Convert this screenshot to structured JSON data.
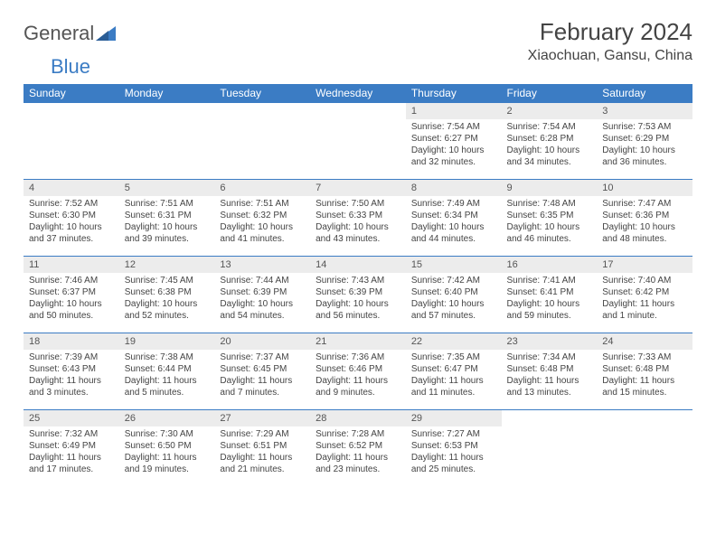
{
  "brand": {
    "part1": "General",
    "part2": "Blue"
  },
  "title": "February 2024",
  "location": "Xiaochuan, Gansu, China",
  "colors": {
    "accent": "#3b7cc4",
    "daynum_bg": "#ececec",
    "text": "#444444",
    "bg": "#ffffff"
  },
  "weekdays": [
    "Sunday",
    "Monday",
    "Tuesday",
    "Wednesday",
    "Thursday",
    "Friday",
    "Saturday"
  ],
  "weeks": [
    [
      null,
      null,
      null,
      null,
      {
        "n": "1",
        "sr": "Sunrise: 7:54 AM",
        "ss": "Sunset: 6:27 PM",
        "dl": "Daylight: 10 hours and 32 minutes."
      },
      {
        "n": "2",
        "sr": "Sunrise: 7:54 AM",
        "ss": "Sunset: 6:28 PM",
        "dl": "Daylight: 10 hours and 34 minutes."
      },
      {
        "n": "3",
        "sr": "Sunrise: 7:53 AM",
        "ss": "Sunset: 6:29 PM",
        "dl": "Daylight: 10 hours and 36 minutes."
      }
    ],
    [
      {
        "n": "4",
        "sr": "Sunrise: 7:52 AM",
        "ss": "Sunset: 6:30 PM",
        "dl": "Daylight: 10 hours and 37 minutes."
      },
      {
        "n": "5",
        "sr": "Sunrise: 7:51 AM",
        "ss": "Sunset: 6:31 PM",
        "dl": "Daylight: 10 hours and 39 minutes."
      },
      {
        "n": "6",
        "sr": "Sunrise: 7:51 AM",
        "ss": "Sunset: 6:32 PM",
        "dl": "Daylight: 10 hours and 41 minutes."
      },
      {
        "n": "7",
        "sr": "Sunrise: 7:50 AM",
        "ss": "Sunset: 6:33 PM",
        "dl": "Daylight: 10 hours and 43 minutes."
      },
      {
        "n": "8",
        "sr": "Sunrise: 7:49 AM",
        "ss": "Sunset: 6:34 PM",
        "dl": "Daylight: 10 hours and 44 minutes."
      },
      {
        "n": "9",
        "sr": "Sunrise: 7:48 AM",
        "ss": "Sunset: 6:35 PM",
        "dl": "Daylight: 10 hours and 46 minutes."
      },
      {
        "n": "10",
        "sr": "Sunrise: 7:47 AM",
        "ss": "Sunset: 6:36 PM",
        "dl": "Daylight: 10 hours and 48 minutes."
      }
    ],
    [
      {
        "n": "11",
        "sr": "Sunrise: 7:46 AM",
        "ss": "Sunset: 6:37 PM",
        "dl": "Daylight: 10 hours and 50 minutes."
      },
      {
        "n": "12",
        "sr": "Sunrise: 7:45 AM",
        "ss": "Sunset: 6:38 PM",
        "dl": "Daylight: 10 hours and 52 minutes."
      },
      {
        "n": "13",
        "sr": "Sunrise: 7:44 AM",
        "ss": "Sunset: 6:39 PM",
        "dl": "Daylight: 10 hours and 54 minutes."
      },
      {
        "n": "14",
        "sr": "Sunrise: 7:43 AM",
        "ss": "Sunset: 6:39 PM",
        "dl": "Daylight: 10 hours and 56 minutes."
      },
      {
        "n": "15",
        "sr": "Sunrise: 7:42 AM",
        "ss": "Sunset: 6:40 PM",
        "dl": "Daylight: 10 hours and 57 minutes."
      },
      {
        "n": "16",
        "sr": "Sunrise: 7:41 AM",
        "ss": "Sunset: 6:41 PM",
        "dl": "Daylight: 10 hours and 59 minutes."
      },
      {
        "n": "17",
        "sr": "Sunrise: 7:40 AM",
        "ss": "Sunset: 6:42 PM",
        "dl": "Daylight: 11 hours and 1 minute."
      }
    ],
    [
      {
        "n": "18",
        "sr": "Sunrise: 7:39 AM",
        "ss": "Sunset: 6:43 PM",
        "dl": "Daylight: 11 hours and 3 minutes."
      },
      {
        "n": "19",
        "sr": "Sunrise: 7:38 AM",
        "ss": "Sunset: 6:44 PM",
        "dl": "Daylight: 11 hours and 5 minutes."
      },
      {
        "n": "20",
        "sr": "Sunrise: 7:37 AM",
        "ss": "Sunset: 6:45 PM",
        "dl": "Daylight: 11 hours and 7 minutes."
      },
      {
        "n": "21",
        "sr": "Sunrise: 7:36 AM",
        "ss": "Sunset: 6:46 PM",
        "dl": "Daylight: 11 hours and 9 minutes."
      },
      {
        "n": "22",
        "sr": "Sunrise: 7:35 AM",
        "ss": "Sunset: 6:47 PM",
        "dl": "Daylight: 11 hours and 11 minutes."
      },
      {
        "n": "23",
        "sr": "Sunrise: 7:34 AM",
        "ss": "Sunset: 6:48 PM",
        "dl": "Daylight: 11 hours and 13 minutes."
      },
      {
        "n": "24",
        "sr": "Sunrise: 7:33 AM",
        "ss": "Sunset: 6:48 PM",
        "dl": "Daylight: 11 hours and 15 minutes."
      }
    ],
    [
      {
        "n": "25",
        "sr": "Sunrise: 7:32 AM",
        "ss": "Sunset: 6:49 PM",
        "dl": "Daylight: 11 hours and 17 minutes."
      },
      {
        "n": "26",
        "sr": "Sunrise: 7:30 AM",
        "ss": "Sunset: 6:50 PM",
        "dl": "Daylight: 11 hours and 19 minutes."
      },
      {
        "n": "27",
        "sr": "Sunrise: 7:29 AM",
        "ss": "Sunset: 6:51 PM",
        "dl": "Daylight: 11 hours and 21 minutes."
      },
      {
        "n": "28",
        "sr": "Sunrise: 7:28 AM",
        "ss": "Sunset: 6:52 PM",
        "dl": "Daylight: 11 hours and 23 minutes."
      },
      {
        "n": "29",
        "sr": "Sunrise: 7:27 AM",
        "ss": "Sunset: 6:53 PM",
        "dl": "Daylight: 11 hours and 25 minutes."
      },
      null,
      null
    ]
  ]
}
